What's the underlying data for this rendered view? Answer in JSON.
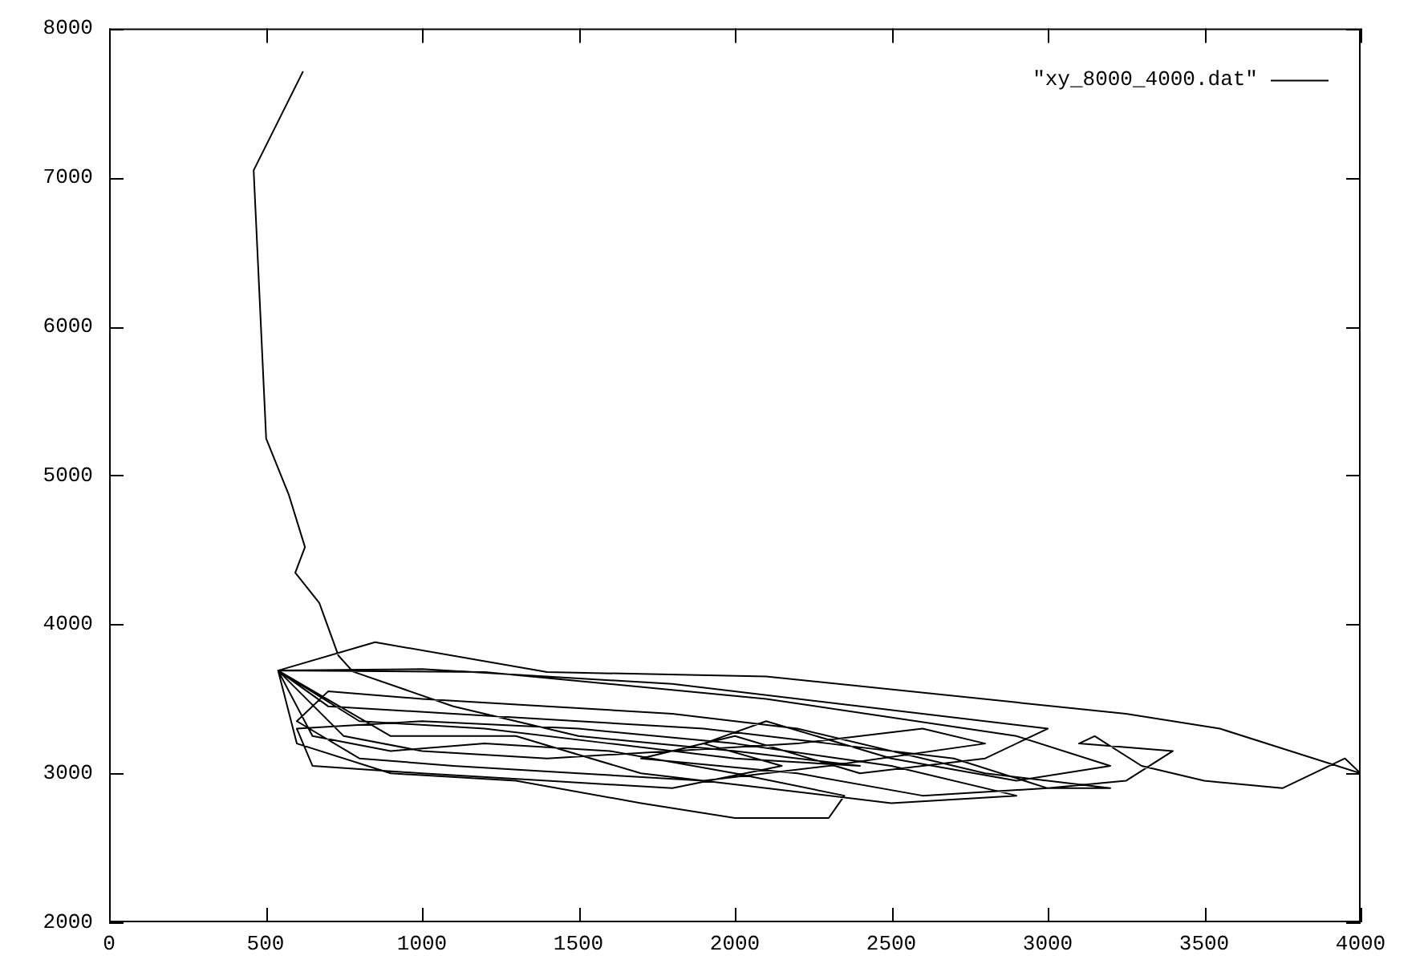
{
  "chart_data": {
    "type": "line",
    "legend": "top right",
    "grid": false,
    "xlim": [
      0,
      4000
    ],
    "xticks": [
      0,
      500,
      1000,
      1500,
      2000,
      2500,
      3000,
      3500,
      4000
    ],
    "ylim": [
      2000,
      8000
    ],
    "yticks": [
      2000,
      3000,
      4000,
      5000,
      6000,
      7000,
      8000
    ],
    "series": [
      {
        "name": "\"xy_8000_4000.dat\"",
        "color": "#000000",
        "x": [
          620,
          462,
          502,
          574,
          626,
          595,
          672,
          733,
          779,
          1100,
          1500,
          2000,
          2400,
          2000,
          1600,
          1200,
          800,
          540,
          850,
          1400,
          2100,
          3250,
          3550,
          4000,
          3950,
          3750,
          3500,
          3300,
          3150,
          3100,
          3400,
          3250,
          3000,
          2700,
          2300,
          1900,
          1500,
          1100,
          700,
          540,
          600,
          900,
          1300,
          1700,
          2000,
          2300,
          2350,
          2000,
          1600,
          1200,
          900,
          650,
          540,
          1000,
          1800,
          2600,
          3000,
          2800,
          2400,
          2000,
          1700,
          2200,
          2600,
          3000,
          3200,
          2800,
          2200,
          1800,
          1400,
          1000,
          700,
          600,
          800,
          1100,
          1500,
          1900,
          2300,
          2800,
          2600,
          2200,
          1800,
          1400,
          1000,
          750,
          540,
          1200,
          2100,
          2900,
          3200,
          2900,
          2500,
          2100,
          1900,
          2150,
          1800,
          1400,
          1000,
          650,
          600,
          1000,
          1500,
          2000,
          2500,
          2900,
          2500,
          2100,
          1700,
          1300,
          900,
          540
        ],
        "values": [
          7713,
          7048,
          5247,
          4872,
          4519,
          4347,
          4143,
          3790,
          3683,
          3450,
          3250,
          3150,
          3050,
          3100,
          3200,
          3300,
          3350,
          3690,
          3880,
          3680,
          3650,
          3400,
          3300,
          3000,
          3100,
          2900,
          2950,
          3050,
          3250,
          3200,
          3150,
          2950,
          2900,
          3100,
          3200,
          3300,
          3350,
          3400,
          3450,
          3690,
          3200,
          3000,
          2950,
          2800,
          2700,
          2700,
          2850,
          3000,
          3150,
          3200,
          3150,
          3250,
          3690,
          3700,
          3600,
          3400,
          3300,
          3100,
          3000,
          3250,
          3100,
          3000,
          2850,
          2900,
          2900,
          3000,
          3300,
          3400,
          3450,
          3500,
          3550,
          3350,
          3100,
          3050,
          3000,
          2950,
          3050,
          3200,
          3300,
          3200,
          3150,
          3100,
          3150,
          3250,
          3690,
          3680,
          3500,
          3250,
          3050,
          2950,
          3100,
          3350,
          3200,
          3050,
          2900,
          2950,
          3000,
          3050,
          3300,
          3350,
          3300,
          3200,
          3050,
          2850,
          2800,
          2900,
          3000,
          3250,
          3250,
          3690
        ]
      }
    ]
  }
}
